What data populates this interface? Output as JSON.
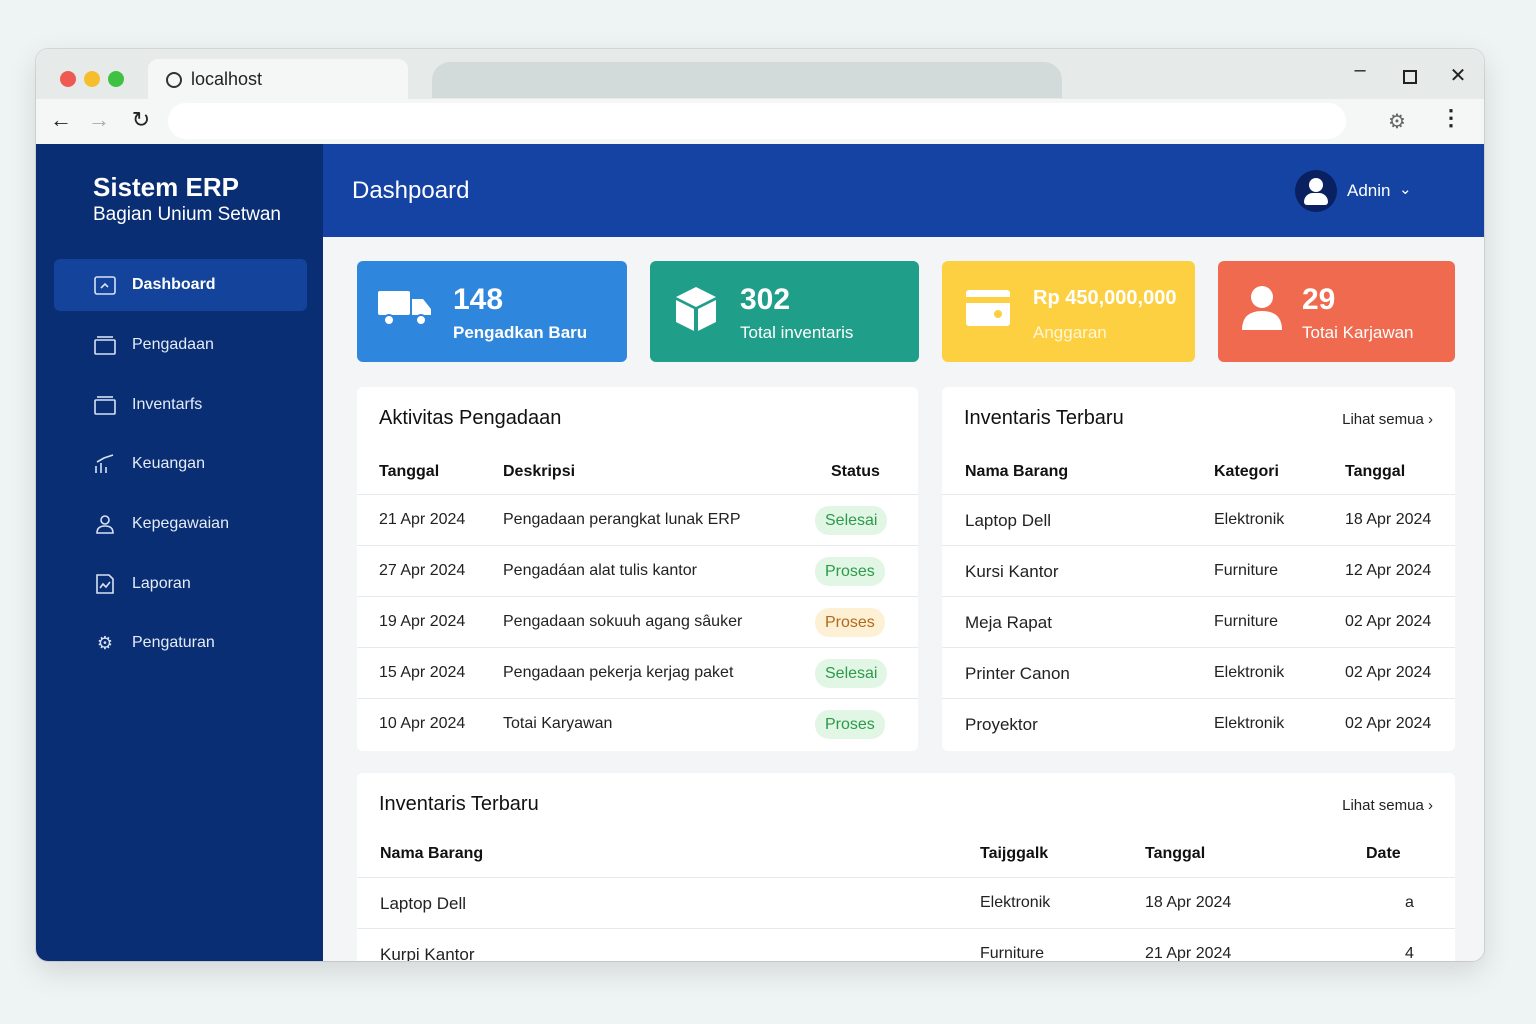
{
  "browser": {
    "tab_title": "localhost",
    "address": ""
  },
  "sidebar": {
    "brand_title": "Sistem ERP",
    "brand_subtitle": "Bagian Unium Setwan",
    "items": [
      {
        "label": "Dashboard",
        "icon": "dashboard-icon",
        "active": true
      },
      {
        "label": "Pengadaan",
        "icon": "box-icon"
      },
      {
        "label": "Inventarfs",
        "icon": "archive-icon"
      },
      {
        "label": "Keuangan",
        "icon": "finance-chart-icon"
      },
      {
        "label": "Kepegawaian",
        "icon": "user-icon"
      },
      {
        "label": "Laporan",
        "icon": "report-icon"
      },
      {
        "label": "Pengaturan",
        "icon": "gear-icon"
      }
    ]
  },
  "header": {
    "title": "Dashpoard",
    "user_name": "Adnin"
  },
  "stats": [
    {
      "value": "148",
      "label": "Pengadkan Baru",
      "color": "#2f86dd",
      "icon": "truck-icon"
    },
    {
      "value": "302",
      "label": "Total inventaris",
      "color": "#1f9e89",
      "icon": "package-icon"
    },
    {
      "value": "Rp 450,000,000",
      "label": "Anggaran",
      "color": "#fdd041",
      "icon": "card-icon"
    },
    {
      "value": "29",
      "label": "Totai Karjawan",
      "color": "#ef6a4e",
      "icon": "person-icon"
    }
  ],
  "aktivitas": {
    "title": "Aktivitas Pengadaan",
    "columns": [
      "Tanggal",
      "Deskripsi",
      "Status"
    ],
    "rows": [
      {
        "date": "21 Apr 2024",
        "desc": "Pengadaan perangkat lunak ERP",
        "status": "Selesai",
        "tone": "green"
      },
      {
        "date": "27 Apr 2024",
        "desc": "Pengadáan alat tulis kantor",
        "status": "Proses",
        "tone": "green"
      },
      {
        "date": "19 Apr 2024",
        "desc": "Pengadaan sokuuh agang sâuker",
        "status": "Proses",
        "tone": "amber"
      },
      {
        "date": "15 Apr 2024",
        "desc": "Pengadaan pekerja kerjag paket",
        "status": "Selesai",
        "tone": "green"
      },
      {
        "date": "10 Apr 2024",
        "desc": "Totai Karyawan",
        "status": "Proses",
        "tone": "green"
      }
    ]
  },
  "inventaris": {
    "title": "Inventaris Terbaru",
    "link": "Lihat semua ›",
    "columns": [
      "Nama Barang",
      "Kategori",
      "Tanggal"
    ],
    "rows": [
      {
        "name": "Laptop Dell",
        "category": "Elektronik",
        "date": "18 Apr 2024"
      },
      {
        "name": "Kursi Kantor",
        "category": "Furniture",
        "date": "12 Apr 2024"
      },
      {
        "name": "Meja Rapat",
        "category": "Furniture",
        "date": "02 Apr 2024"
      },
      {
        "name": "Printer Canon",
        "category": "Elektronik",
        "date": "02 Apr 2024"
      },
      {
        "name": "Proyektor",
        "category": "Elektronik",
        "date": "02 Apr 2024"
      }
    ]
  },
  "inventaris_bottom": {
    "title": "Inventaris Terbaru",
    "link": "Lihat semua ›",
    "columns": [
      "Nama Barang",
      "Taiјggalk",
      "Tanggal",
      "Date"
    ],
    "rows": [
      {
        "name": "Laptop Dell",
        "category": "Elektronik",
        "date": "18 Apr 2024",
        "extra": "a"
      },
      {
        "name": "Kurpi Kantor",
        "category": "Furniture",
        "date": "21 Apr 2024",
        "extra": "4"
      }
    ]
  }
}
